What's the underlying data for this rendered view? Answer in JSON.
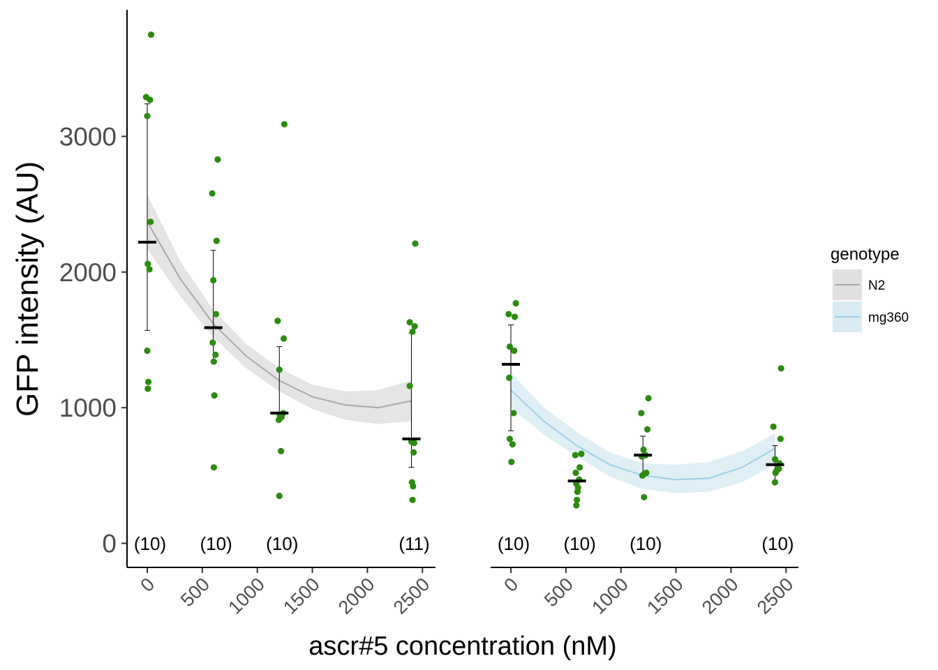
{
  "chart_data": {
    "type": "scatter",
    "xlabel": "ascr#5 concentration (nM)",
    "ylabel": "GFP intensity (AU)",
    "ylim": [
      0,
      3800
    ],
    "yticks": [
      0,
      1000,
      2000,
      3000
    ],
    "xticks": [
      0,
      500,
      1000,
      1500,
      2000,
      2500
    ],
    "xlim": [
      -200,
      2600
    ],
    "grid": false,
    "legend": {
      "title": "genotype",
      "placement": "right",
      "entries": [
        {
          "label": "N2",
          "line_color": "#a8a8a8",
          "band_color": "#e0e0e0"
        },
        {
          "label": "mg360",
          "line_color": "#9dd0e6",
          "band_color": "#d9ecf5"
        }
      ]
    },
    "point_color": "#2b8c0e",
    "panels": [
      {
        "genotype": "N2",
        "groups": [
          {
            "x": 0,
            "n_label": "(10)",
            "mean": 2220,
            "err_lo": 1570,
            "err_hi": 3240,
            "points": [
              [
                -10,
                3290
              ],
              [
                35,
                3750
              ],
              [
                0,
                3150
              ],
              [
                25,
                3270
              ],
              [
                30,
                2370
              ],
              [
                5,
                2060
              ],
              [
                20,
                2020
              ],
              [
                0,
                1420
              ],
              [
                10,
                1190
              ],
              [
                5,
                1140
              ]
            ]
          },
          {
            "x": 600,
            "n_label": "(10)",
            "mean": 1590,
            "err_lo": 1340,
            "err_hi": 2160,
            "points": [
              [
                -10,
                2580
              ],
              [
                40,
                2830
              ],
              [
                30,
                2230
              ],
              [
                0,
                1940
              ],
              [
                25,
                1690
              ],
              [
                -5,
                1480
              ],
              [
                20,
                1390
              ],
              [
                5,
                1340
              ],
              [
                10,
                1090
              ],
              [
                5,
                560
              ]
            ]
          },
          {
            "x": 1200,
            "n_label": "(10)",
            "mean": 960,
            "err_lo": 960,
            "err_hi": 1450,
            "points": [
              [
                -15,
                1640
              ],
              [
                45,
                3090
              ],
              [
                0,
                1280
              ],
              [
                40,
                1510
              ],
              [
                35,
                960
              ],
              [
                5,
                940
              ],
              [
                20,
                930
              ],
              [
                -5,
                910
              ],
              [
                15,
                680
              ],
              [
                0,
                350
              ]
            ]
          },
          {
            "x": 2400,
            "n_label": "(11)",
            "mean": 770,
            "err_lo": 560,
            "err_hi": 1550,
            "points": [
              [
                -15,
                1630
              ],
              [
                35,
                2210
              ],
              [
                30,
                1600
              ],
              [
                10,
                1560
              ],
              [
                -15,
                1160
              ],
              [
                0,
                750
              ],
              [
                20,
                670
              ],
              [
                5,
                450
              ],
              [
                15,
                420
              ],
              [
                10,
                320
              ],
              [
                25,
                740
              ]
            ]
          }
        ],
        "fit": {
          "x": [
            0,
            300,
            600,
            900,
            1200,
            1500,
            1800,
            2100,
            2400
          ],
          "y": [
            2370,
            1950,
            1620,
            1380,
            1200,
            1080,
            1020,
            1000,
            1050
          ],
          "lo": [
            2170,
            1820,
            1520,
            1290,
            1120,
            990,
            910,
            880,
            900
          ],
          "hi": [
            2570,
            2080,
            1720,
            1470,
            1290,
            1170,
            1120,
            1130,
            1200
          ]
        }
      },
      {
        "genotype": "mg360",
        "groups": [
          {
            "x": 0,
            "n_label": "(10)",
            "mean": 1320,
            "err_lo": 830,
            "err_hi": 1610,
            "points": [
              [
                -20,
                1690
              ],
              [
                45,
                1770
              ],
              [
                35,
                1670
              ],
              [
                -10,
                1450
              ],
              [
                30,
                1420
              ],
              [
                -15,
                1220
              ],
              [
                25,
                960
              ],
              [
                -10,
                770
              ],
              [
                15,
                730
              ],
              [
                5,
                600
              ]
            ]
          },
          {
            "x": 600,
            "n_label": "(10)",
            "mean": 460,
            "err_lo": 460,
            "err_hi": 460,
            "points": [
              [
                -15,
                650
              ],
              [
                40,
                660
              ],
              [
                25,
                560
              ],
              [
                -10,
                520
              ],
              [
                20,
                470
              ],
              [
                -5,
                440
              ],
              [
                10,
                410
              ],
              [
                5,
                380
              ],
              [
                0,
                320
              ],
              [
                -5,
                280
              ]
            ]
          },
          {
            "x": 1200,
            "n_label": "(10)",
            "mean": 650,
            "err_lo": 500,
            "err_hi": 790,
            "points": [
              [
                -15,
                960
              ],
              [
                50,
                1070
              ],
              [
                40,
                840
              ],
              [
                5,
                690
              ],
              [
                25,
                650
              ],
              [
                -10,
                640
              ],
              [
                30,
                520
              ],
              [
                10,
                510
              ],
              [
                -5,
                500
              ],
              [
                10,
                340
              ]
            ]
          },
          {
            "x": 2400,
            "n_label": "(10)",
            "mean": 580,
            "err_lo": 440,
            "err_hi": 720,
            "points": [
              [
                55,
                1290
              ],
              [
                -15,
                860
              ],
              [
                50,
                770
              ],
              [
                0,
                620
              ],
              [
                40,
                590
              ],
              [
                25,
                570
              ],
              [
                35,
                550
              ],
              [
                10,
                530
              ],
              [
                5,
                520
              ],
              [
                0,
                450
              ]
            ]
          }
        ],
        "fit": {
          "x": [
            0,
            300,
            600,
            900,
            1200,
            1500,
            1800,
            2100,
            2400
          ],
          "y": [
            1130,
            900,
            720,
            580,
            500,
            470,
            480,
            560,
            700
          ],
          "lo": [
            1000,
            800,
            640,
            490,
            400,
            370,
            380,
            450,
            580
          ],
          "hi": [
            1260,
            1000,
            820,
            670,
            590,
            580,
            600,
            680,
            810
          ]
        }
      }
    ]
  }
}
